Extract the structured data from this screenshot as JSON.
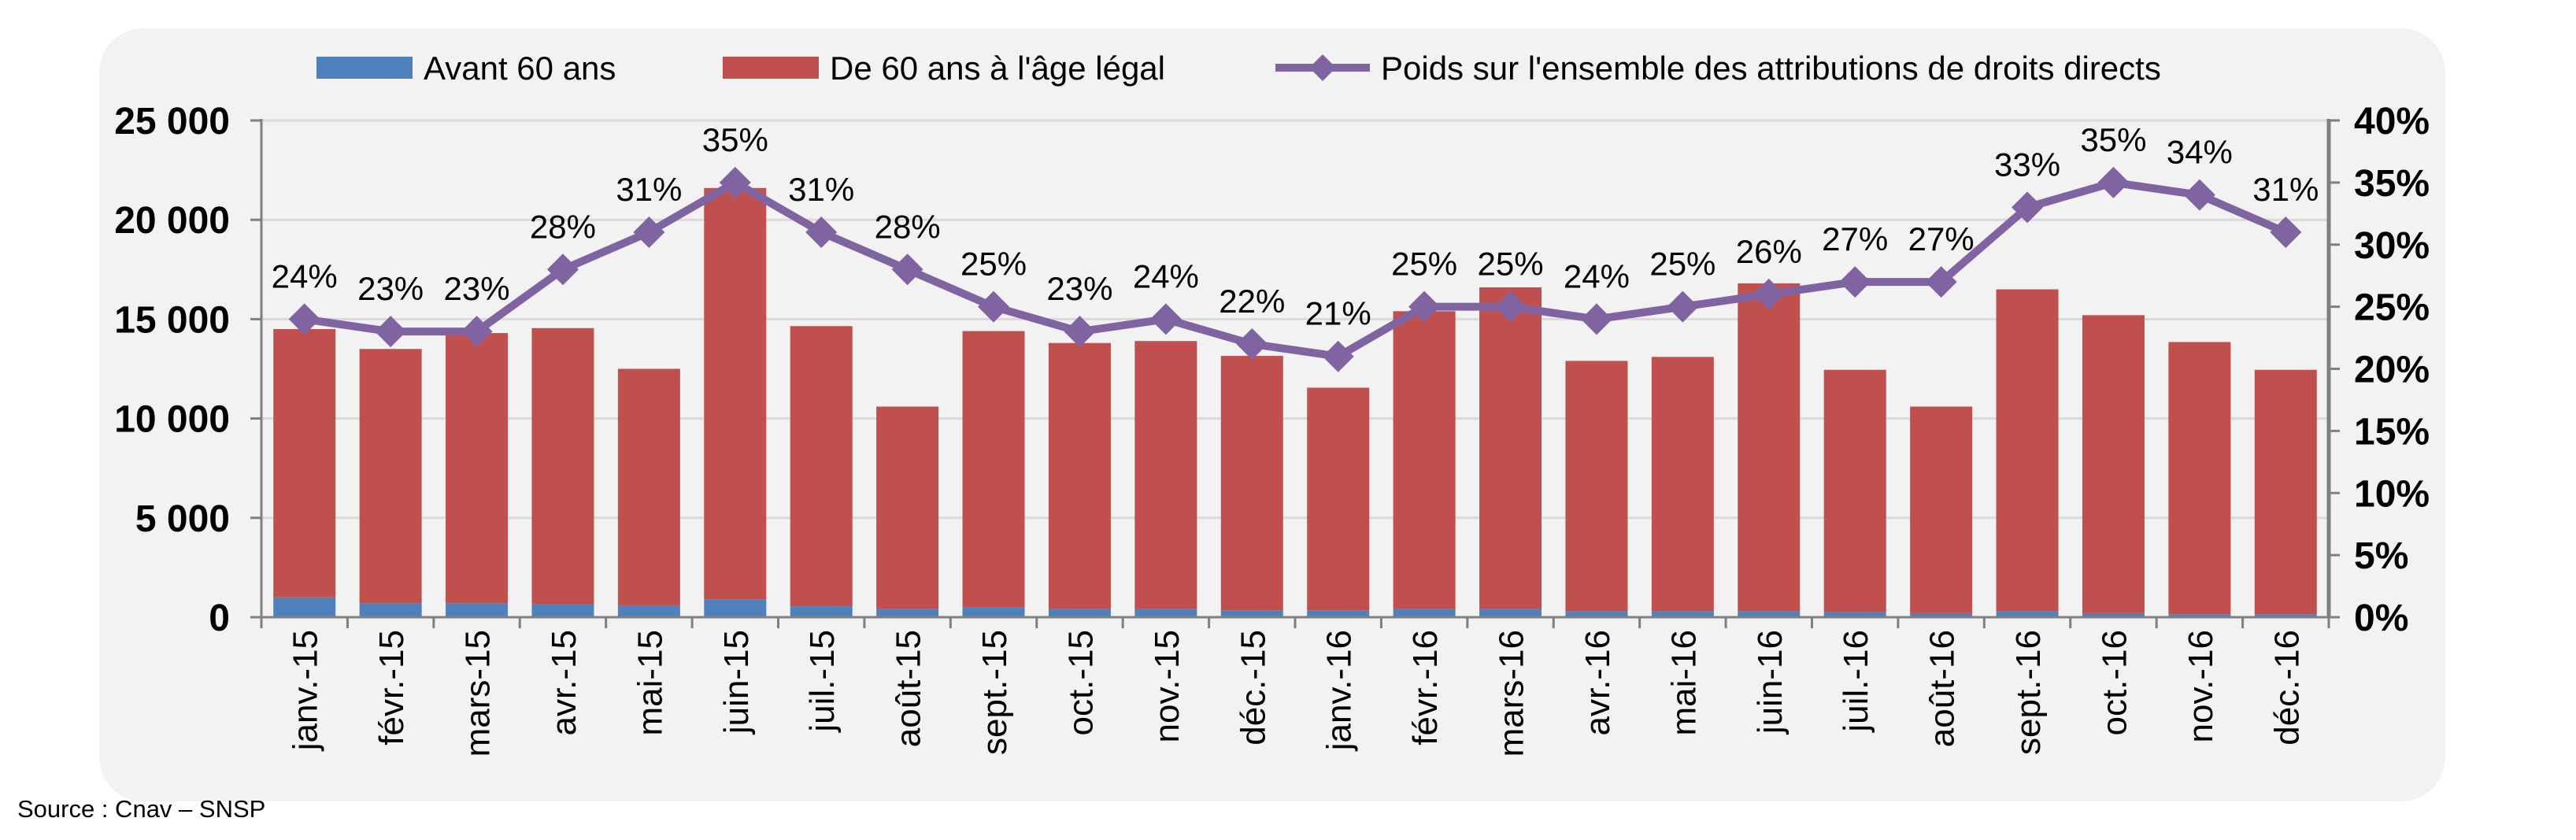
{
  "source": "Source : Cnav – SNSP",
  "colors": {
    "before60": "#4f81bd",
    "legal_age": "#c0504d",
    "share": "#8064a2",
    "grid": "#d9d9d9",
    "axis": "#7f7f7f"
  },
  "chart_data": {
    "type": "bar",
    "stacked": true,
    "grid": true,
    "legend_position": "top",
    "categories": [
      "janv.-15",
      "févr.-15",
      "mars-15",
      "avr.-15",
      "mai-15",
      "juin-15",
      "juil.-15",
      "août-15",
      "sept.-15",
      "oct.-15",
      "nov.-15",
      "déc.-15",
      "janv.-16",
      "févr.-16",
      "mars-16",
      "avr.-16",
      "mai-16",
      "juin-16",
      "juil.-16",
      "août-16",
      "sept.-16",
      "oct.-16",
      "nov.-16",
      "déc.-16"
    ],
    "series": [
      {
        "name": "Avant 60 ans",
        "axis": "left",
        "type": "bar",
        "values": [
          1000,
          700,
          700,
          650,
          600,
          900,
          550,
          400,
          500,
          400,
          400,
          350,
          350,
          400,
          400,
          300,
          300,
          300,
          250,
          200,
          300,
          200,
          150,
          150
        ]
      },
      {
        "name": "De 60 ans à l'âge légal",
        "axis": "left",
        "type": "bar",
        "values": [
          13500,
          12800,
          13600,
          13900,
          11900,
          20700,
          14100,
          10200,
          13900,
          13400,
          13500,
          12800,
          11200,
          15000,
          16200,
          12600,
          12800,
          16500,
          12200,
          10400,
          16200,
          15000,
          13700,
          12300
        ]
      },
      {
        "name": "Poids sur l'ensemble des attributions de droits directs",
        "axis": "right",
        "type": "line",
        "values": [
          24,
          23,
          23,
          28,
          31,
          35,
          31,
          28,
          25,
          23,
          24,
          22,
          21,
          25,
          25,
          24,
          25,
          26,
          27,
          27,
          33,
          35,
          34,
          31
        ],
        "labels": [
          "24%",
          "23%",
          "23%",
          "28%",
          "31%",
          "35%",
          "31%",
          "28%",
          "25%",
          "23%",
          "24%",
          "22%",
          "21%",
          "25%",
          "25%",
          "24%",
          "25%",
          "26%",
          "27%",
          "27%",
          "33%",
          "35%",
          "34%",
          "31%"
        ]
      }
    ],
    "y_left": {
      "min": 0,
      "max": 25000,
      "ticks": [
        "0",
        "5 000",
        "10 000",
        "15 000",
        "20 000",
        "25 000"
      ]
    },
    "y_right": {
      "min": 0,
      "max": 40,
      "ticks": [
        "0%",
        "5%",
        "10%",
        "15%",
        "20%",
        "25%",
        "30%",
        "35%",
        "40%"
      ]
    }
  }
}
